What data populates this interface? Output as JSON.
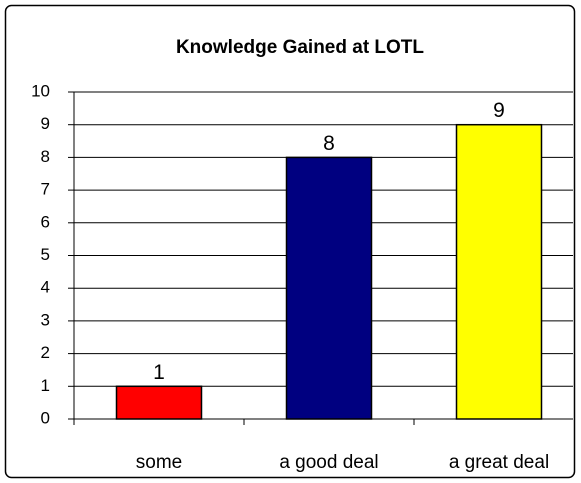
{
  "chart_data": {
    "type": "bar",
    "title": "Knowledge Gained at LOTL",
    "categories": [
      "some",
      "a good deal",
      "a great deal"
    ],
    "values": [
      1,
      8,
      9
    ],
    "colors": [
      "#ff0000",
      "#000080",
      "#ffff00"
    ],
    "ylim": [
      0,
      10
    ],
    "yticks": [
      0,
      1,
      2,
      3,
      4,
      5,
      6,
      7,
      8,
      9,
      10
    ],
    "grid": true
  }
}
